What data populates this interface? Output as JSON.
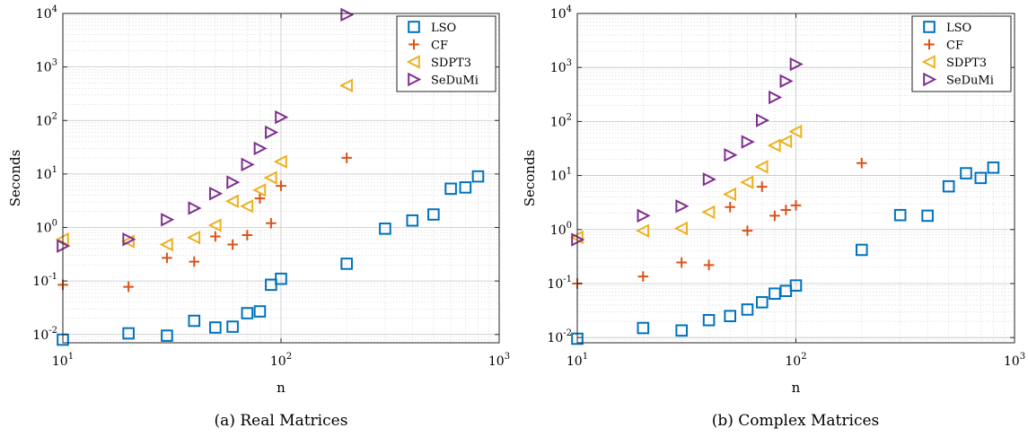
{
  "chart_data": [
    {
      "type": "scatter",
      "caption": "(a) Real Matrices",
      "xlabel": "n",
      "ylabel": "Seconds",
      "xscale": "log",
      "yscale": "log",
      "xlim": [
        10,
        1000
      ],
      "ylim": [
        0.007,
        10000
      ],
      "xticks": [
        {
          "value": 10,
          "base": "10",
          "exp": "1"
        },
        {
          "value": 100,
          "base": "10",
          "exp": "2"
        },
        {
          "value": 1000,
          "base": "10",
          "exp": "3"
        }
      ],
      "yticks": [
        {
          "value": 0.01,
          "base": "10",
          "exp": "-2"
        },
        {
          "value": 0.1,
          "base": "10",
          "exp": "-1"
        },
        {
          "value": 1,
          "base": "10",
          "exp": "0"
        },
        {
          "value": 10,
          "base": "10",
          "exp": "1"
        },
        {
          "value": 100,
          "base": "10",
          "exp": "2"
        },
        {
          "value": 1000,
          "base": "10",
          "exp": "3"
        },
        {
          "value": 10000,
          "base": "10",
          "exp": "4"
        }
      ],
      "grid": true,
      "legend_position": "top-right",
      "series": [
        {
          "name": "LSO",
          "marker": "square",
          "color": "#0072BD",
          "points": [
            [
              10,
              0.008
            ],
            [
              20,
              0.0105
            ],
            [
              30,
              0.0095
            ],
            [
              40,
              0.018
            ],
            [
              50,
              0.0135
            ],
            [
              60,
              0.014
            ],
            [
              70,
              0.025
            ],
            [
              80,
              0.027
            ],
            [
              90,
              0.085
            ],
            [
              100,
              0.11
            ],
            [
              200,
              0.21
            ],
            [
              300,
              0.95
            ],
            [
              400,
              1.35
            ],
            [
              500,
              1.75
            ],
            [
              600,
              5.3
            ],
            [
              700,
              5.6
            ],
            [
              800,
              9.0
            ]
          ]
        },
        {
          "name": "CF",
          "marker": "plus",
          "color": "#D95319",
          "points": [
            [
              10,
              0.085
            ],
            [
              20,
              0.078
            ],
            [
              30,
              0.27
            ],
            [
              40,
              0.23
            ],
            [
              50,
              0.68
            ],
            [
              60,
              0.48
            ],
            [
              70,
              0.72
            ],
            [
              80,
              3.5
            ],
            [
              90,
              1.2
            ],
            [
              100,
              6.0
            ],
            [
              200,
              20.0
            ]
          ]
        },
        {
          "name": "SDPT3",
          "marker": "triangle-left",
          "color": "#EDB120",
          "points": [
            [
              10,
              0.6
            ],
            [
              20,
              0.55
            ],
            [
              30,
              0.48
            ],
            [
              40,
              0.65
            ],
            [
              50,
              1.1
            ],
            [
              60,
              3.1
            ],
            [
              70,
              2.5
            ],
            [
              80,
              5.0
            ],
            [
              90,
              8.5
            ],
            [
              100,
              17.0
            ],
            [
              200,
              450.0
            ]
          ]
        },
        {
          "name": "SeDuMi",
          "marker": "triangle-right",
          "color": "#7E2F8E",
          "points": [
            [
              10,
              0.45
            ],
            [
              20,
              0.6
            ],
            [
              30,
              1.4
            ],
            [
              40,
              2.3
            ],
            [
              50,
              4.3
            ],
            [
              60,
              7.0
            ],
            [
              70,
              15.0
            ],
            [
              80,
              30.0
            ],
            [
              90,
              60.0
            ],
            [
              100,
              115.0
            ],
            [
              200,
              9500.0
            ]
          ]
        }
      ]
    },
    {
      "type": "scatter",
      "caption": "(b) Complex Matrices",
      "xlabel": "n",
      "ylabel": "Seconds",
      "xscale": "log",
      "yscale": "log",
      "xlim": [
        10,
        1000
      ],
      "ylim": [
        0.008,
        10000
      ],
      "xticks": [
        {
          "value": 10,
          "base": "10",
          "exp": "1"
        },
        {
          "value": 100,
          "base": "10",
          "exp": "2"
        },
        {
          "value": 1000,
          "base": "10",
          "exp": "3"
        }
      ],
      "yticks": [
        {
          "value": 0.01,
          "base": "10",
          "exp": "-2"
        },
        {
          "value": 0.1,
          "base": "10",
          "exp": "-1"
        },
        {
          "value": 1,
          "base": "10",
          "exp": "0"
        },
        {
          "value": 10,
          "base": "10",
          "exp": "1"
        },
        {
          "value": 100,
          "base": "10",
          "exp": "2"
        },
        {
          "value": 1000,
          "base": "10",
          "exp": "3"
        },
        {
          "value": 10000,
          "base": "10",
          "exp": "4"
        }
      ],
      "grid": true,
      "legend_position": "top-right",
      "series": [
        {
          "name": "LSO",
          "marker": "square",
          "color": "#0072BD",
          "points": [
            [
              10,
              0.0095
            ],
            [
              20,
              0.015
            ],
            [
              30,
              0.0135
            ],
            [
              40,
              0.021
            ],
            [
              50,
              0.025
            ],
            [
              60,
              0.033
            ],
            [
              70,
              0.045
            ],
            [
              80,
              0.065
            ],
            [
              90,
              0.073
            ],
            [
              100,
              0.092
            ],
            [
              200,
              0.42
            ],
            [
              300,
              1.85
            ],
            [
              400,
              1.8
            ],
            [
              500,
              6.3
            ],
            [
              600,
              11.0
            ],
            [
              700,
              9.0
            ],
            [
              800,
              14.0
            ]
          ]
        },
        {
          "name": "CF",
          "marker": "plus",
          "color": "#D95319",
          "points": [
            [
              10,
              0.1
            ],
            [
              20,
              0.135
            ],
            [
              30,
              0.245
            ],
            [
              40,
              0.22
            ],
            [
              50,
              2.6
            ],
            [
              60,
              0.95
            ],
            [
              70,
              6.2
            ],
            [
              80,
              1.8
            ],
            [
              90,
              2.3
            ],
            [
              100,
              2.8
            ],
            [
              200,
              17.0
            ]
          ]
        },
        {
          "name": "SDPT3",
          "marker": "triangle-left",
          "color": "#EDB120",
          "points": [
            [
              10,
              0.72
            ],
            [
              20,
              0.95
            ],
            [
              30,
              1.05
            ],
            [
              40,
              2.1
            ],
            [
              50,
              4.5
            ],
            [
              60,
              7.5
            ],
            [
              70,
              14.5
            ],
            [
              80,
              36.0
            ],
            [
              90,
              43.0
            ],
            [
              100,
              65.0
            ]
          ]
        },
        {
          "name": "SeDuMi",
          "marker": "triangle-right",
          "color": "#7E2F8E",
          "points": [
            [
              10,
              0.65
            ],
            [
              20,
              1.8
            ],
            [
              30,
              2.7
            ],
            [
              40,
              8.5
            ],
            [
              50,
              24.0
            ],
            [
              60,
              42.0
            ],
            [
              70,
              105.0
            ],
            [
              80,
              280.0
            ],
            [
              90,
              560.0
            ],
            [
              100,
              1150.0
            ]
          ]
        }
      ]
    }
  ]
}
